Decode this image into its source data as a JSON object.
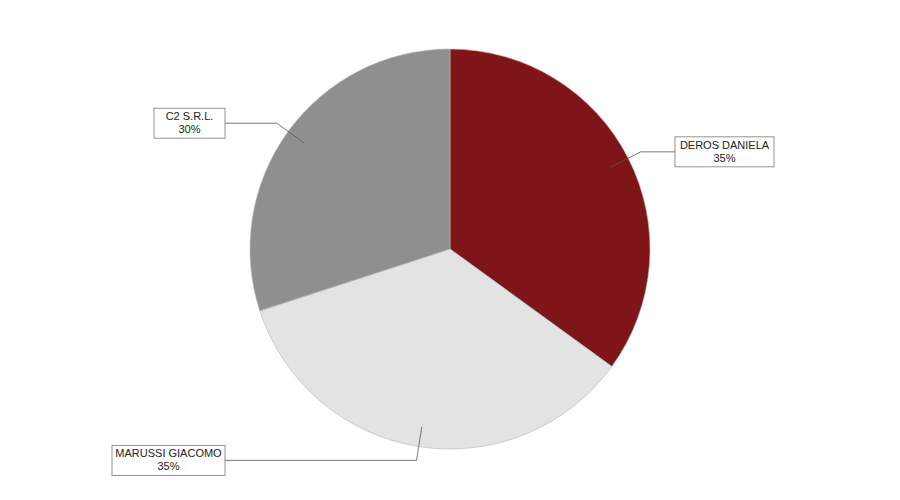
{
  "chart_data": {
    "type": "pie",
    "categories": [
      "DEROS DANIELA",
      "MARUSSI GIACOMO",
      "C2 S.R.L."
    ],
    "values": [
      35,
      35,
      30
    ],
    "value_labels": [
      "35%",
      "35%",
      "30%"
    ],
    "colors": [
      "#7f1519",
      "#e3e3e3",
      "#8f8f8f"
    ],
    "data_labels": true
  }
}
